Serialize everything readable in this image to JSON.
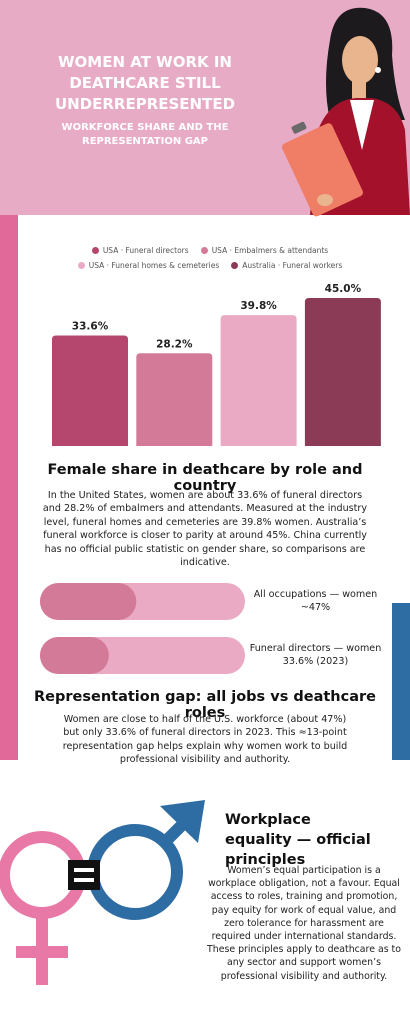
{
  "header": {
    "title": "WOMEN AT WORK IN DEATHCARE STILL UNDERREPRESENTED",
    "subtitle": "WORKFORCE SHARE AND THE REPRESENTATION GAP"
  },
  "chart_data": {
    "type": "bar",
    "categories": [
      "USA · Funeral directors",
      "USA · Embalmers & attendants",
      "USA · Funeral homes & cemeteries",
      "Australia · Funeral workers"
    ],
    "values": [
      33.6,
      28.2,
      39.8,
      45.0
    ],
    "value_labels": [
      "33.6%",
      "28.2%",
      "39.8%",
      "45.0%"
    ],
    "colors": [
      "#b5476e",
      "#d47a99",
      "#eaaac4",
      "#8c3b57"
    ],
    "title": "Female share in deathcare by role and country",
    "description": "In the United States, women are about 33.6% of funeral directors and 28.2% of embalmers and attendants. Measured at the industry level, funeral homes and cemeteries are 39.8% women. Australia’s funeral workforce is closer to parity at around 45%. China currently has no official public statistic on gender share, so comparisons are indicative."
  },
  "gap": {
    "bars": [
      {
        "label": "All occupations — women ~47%",
        "value": 47
      },
      {
        "label": "Funeral directors — women 33.6% (2023)",
        "value": 33.6
      }
    ],
    "title": "Representation gap: all jobs vs deathcare roles",
    "description": "Women are close to half of the U.S. workforce (about 47%) but only 33.6% of funeral directors in 2023. This ≈13-point representation gap helps explain why women work to build professional visibility and authority."
  },
  "equality": {
    "title": "Workplace equality — official principles",
    "description": "Women’s equal participation is a workplace obligation, not a favour. Equal access to roles, training and promotion, pay equity for work of equal value, and zero tolerance for harassment are required under international standards. These principles apply to deathcare as to any sector and support women’s professional visibility and authority."
  }
}
